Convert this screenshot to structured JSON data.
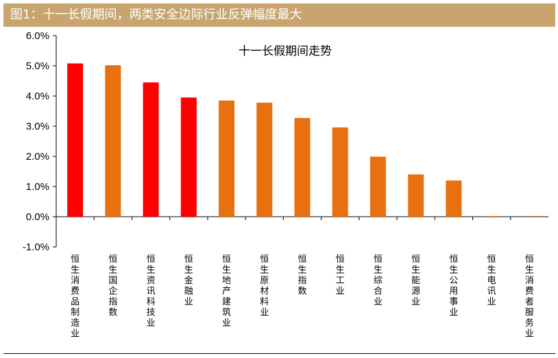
{
  "header": {
    "title": "图1：十一长假期间，两类安全边际行业反弹幅度最大"
  },
  "colors": {
    "header_bg": "#c8a56f",
    "highlight": "#ff0000",
    "normal": "#e8700f",
    "axis": "#000000"
  },
  "chart_data": {
    "type": "bar",
    "title": "十一长假期间走势",
    "xlabel": "",
    "ylabel": "",
    "ylim": [
      -1.0,
      6.0
    ],
    "yticks": [
      "6.0%",
      "5.0%",
      "4.0%",
      "3.0%",
      "2.0%",
      "1.0%",
      "0.0%",
      "-1.0%"
    ],
    "ytick_values": [
      6,
      5,
      4,
      3,
      2,
      1,
      0,
      -1
    ],
    "grid": false,
    "categories": [
      "恒生消费品制造业",
      "恒生国企指数",
      "恒生资讯科技业",
      "恒生金融业",
      "恒生地产建筑业",
      "恒生原材料业",
      "恒生指数",
      "恒生工业",
      "恒生综合业",
      "恒生能源业",
      "恒生公用事业",
      "恒生电讯业",
      "恒生消费者服务业"
    ],
    "values": [
      5.08,
      5.02,
      4.45,
      3.95,
      3.85,
      3.78,
      3.27,
      2.96,
      1.99,
      1.4,
      1.2,
      0.0,
      -0.02
    ],
    "highlighted": [
      true,
      false,
      true,
      true,
      false,
      false,
      false,
      false,
      false,
      false,
      false,
      false,
      false
    ]
  }
}
